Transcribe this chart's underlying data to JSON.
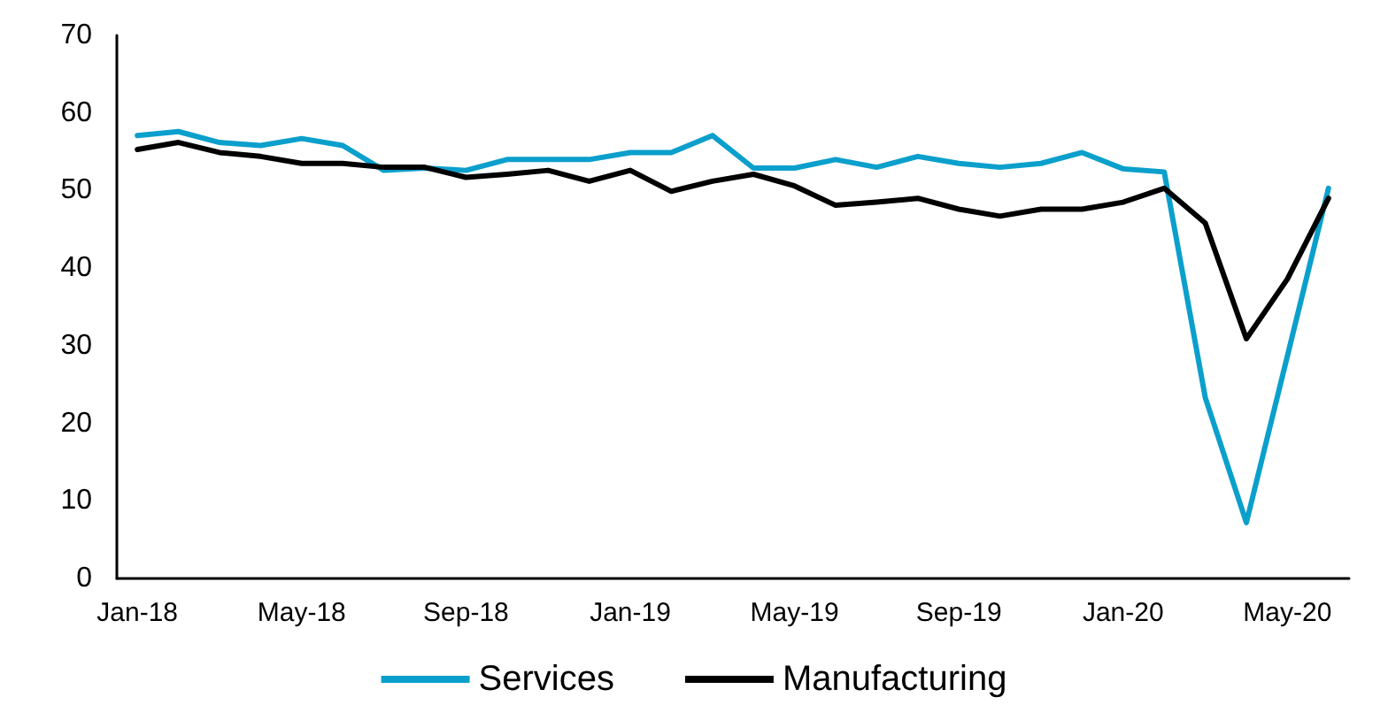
{
  "chart_data": {
    "type": "line",
    "categories": [
      "Jan-18",
      null,
      null,
      null,
      "May-18",
      null,
      null,
      null,
      "Sep-18",
      null,
      null,
      null,
      "Jan-19",
      null,
      null,
      null,
      "May-19",
      null,
      null,
      null,
      "Sep-19",
      null,
      null,
      null,
      "Jan-20",
      null,
      null,
      null,
      "May-20",
      null
    ],
    "series": [
      {
        "name": "Services",
        "color": "#0b9fcc",
        "values": [
          57.1,
          57.6,
          56.2,
          55.8,
          56.7,
          55.8,
          52.6,
          52.9,
          52.6,
          54.0,
          54.0,
          54.0,
          54.9,
          54.9,
          57.1,
          52.9,
          52.9,
          54.0,
          53.0,
          54.4,
          53.5,
          53.0,
          53.5,
          54.9,
          52.8,
          52.4,
          23.3,
          7.2,
          28.7,
          50.3
        ]
      },
      {
        "name": "Manufacturing",
        "color": "#000000",
        "values": [
          55.3,
          56.2,
          54.9,
          54.4,
          53.5,
          53.5,
          53.0,
          53.0,
          51.7,
          52.1,
          52.6,
          51.2,
          52.6,
          49.9,
          51.2,
          52.1,
          50.6,
          48.1,
          48.5,
          49.0,
          47.6,
          46.7,
          47.6,
          47.6,
          48.5,
          50.3,
          45.8,
          30.9,
          38.6,
          49.0
        ]
      }
    ],
    "ylim": [
      0,
      70
    ],
    "yticks": [
      0,
      10,
      20,
      30,
      40,
      50,
      60,
      70
    ],
    "grid": false,
    "legend": "bottom",
    "marker": "none",
    "line_style": "solid"
  }
}
